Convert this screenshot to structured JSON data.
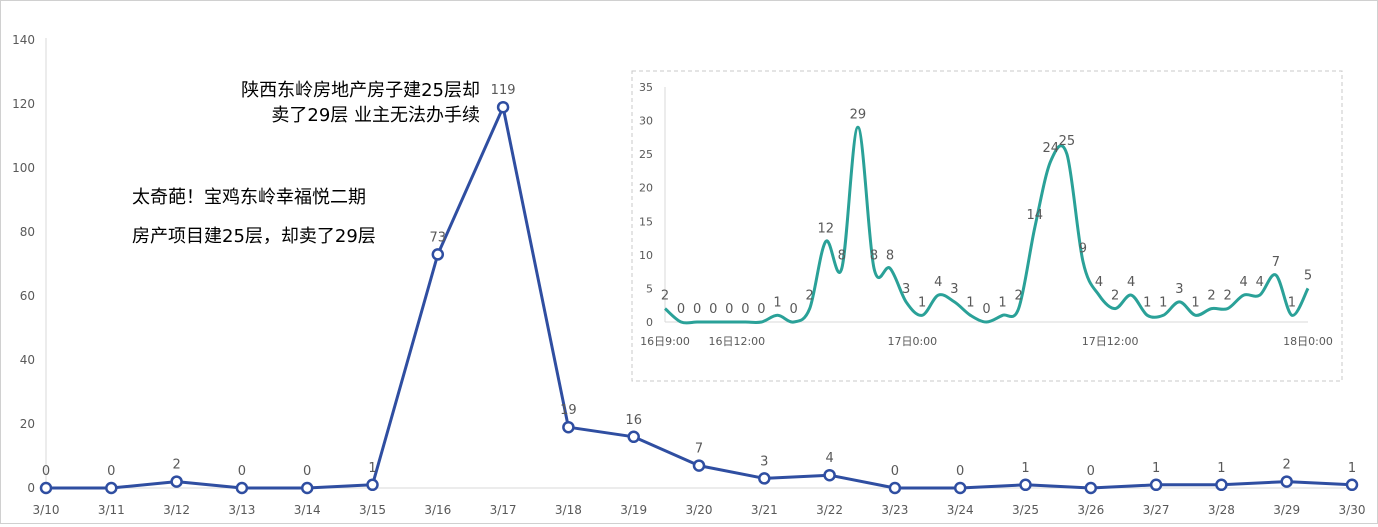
{
  "chart_data": [
    {
      "type": "line",
      "categories": [
        "3/10",
        "3/11",
        "3/12",
        "3/13",
        "3/14",
        "3/15",
        "3/16",
        "3/17",
        "3/18",
        "3/19",
        "3/20",
        "3/21",
        "3/22",
        "3/23",
        "3/24",
        "3/25",
        "3/26",
        "3/27",
        "3/28",
        "3/29",
        "3/30"
      ],
      "series": [
        {
          "values": [
            0,
            0,
            2,
            0,
            0,
            1,
            73,
            119,
            19,
            16,
            7,
            3,
            4,
            0,
            0,
            1,
            0,
            1,
            1,
            2,
            1
          ]
        }
      ],
      "data_labels": [
        "0",
        "0",
        "2",
        "0",
        "0",
        "1",
        "73",
        "119",
        "19",
        "16",
        "7",
        "3",
        "4",
        "0",
        "0",
        "1",
        "0",
        "1",
        "1",
        "2",
        "1"
      ],
      "ylim": [
        0,
        140
      ],
      "yticks": [
        "0",
        "20",
        "40",
        "60",
        "80",
        "100",
        "120",
        "140"
      ],
      "annotations": [
        {
          "lines": [
            "陕西东岭房地产房子建25层却",
            "卖了29层 业主无法办手续"
          ]
        },
        {
          "lines": [
            "太奇葩！宝鸡东岭幸福悦二期",
            "房产项目建25层，却卖了29层"
          ]
        }
      ],
      "grid": false,
      "legend": "none",
      "colors": {
        "line": "#2f4ea1",
        "marker_fill": "#ffffff"
      }
    },
    {
      "type": "line",
      "x_tick_labels": [
        "16日9:00",
        "16日12:00",
        "17日0:00",
        "17日12:00",
        "18日0:00"
      ],
      "series": [
        {
          "values": [
            2,
            0,
            0,
            0,
            0,
            0,
            0,
            1,
            0,
            2,
            12,
            8,
            29,
            8,
            8,
            3,
            1,
            4,
            3,
            1,
            0,
            1,
            2,
            14,
            24,
            25,
            9,
            4,
            2,
            4,
            1,
            1,
            3,
            1,
            2,
            2,
            4,
            4,
            7,
            1,
            5
          ]
        }
      ],
      "data_labels": [
        "2",
        "0",
        "0",
        "0",
        "0",
        "0",
        "0",
        "1",
        "0",
        "2",
        "12",
        "8",
        "29",
        "8",
        "8",
        "3",
        "1",
        "4",
        "3",
        "1",
        "0",
        "1",
        "2",
        "14",
        "24",
        "25",
        "9",
        "4",
        "2",
        "4",
        "1",
        "1",
        "3",
        "1",
        "2",
        "2",
        "4",
        "4",
        "7",
        "1",
        "5"
      ],
      "ylim": [
        0,
        35
      ],
      "yticks": [
        "0",
        "5",
        "10",
        "15",
        "20",
        "25",
        "30",
        "35"
      ],
      "grid": false,
      "legend": "none",
      "colors": {
        "line": "#2aa198"
      }
    }
  ]
}
